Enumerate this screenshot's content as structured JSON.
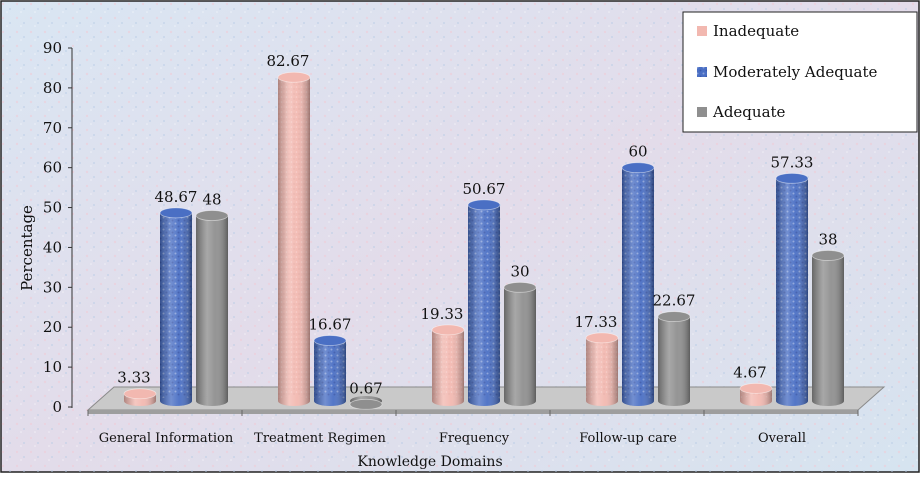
{
  "chart_data": {
    "type": "bar",
    "xlabel": "Knowledge Domains",
    "ylabel": "Percentage",
    "ylim": [
      0,
      90
    ],
    "yticks": [
      "0",
      "10",
      "20",
      "30",
      "40",
      "50",
      "60",
      "70",
      "80",
      "90"
    ],
    "categories": [
      "General Information",
      "Treatment Regimen",
      "Frequency",
      "Follow-up care",
      "Overall"
    ],
    "series": [
      {
        "name": "Inadequate",
        "color": "#f2b8b0",
        "values": [
          3.33,
          82.67,
          19.33,
          17.33,
          4.67
        ],
        "labels": [
          "3.33",
          "82.67",
          "19.33",
          "17.33",
          "4.67"
        ]
      },
      {
        "name": "Moderately Adequate",
        "color": "#4a6fc4",
        "values": [
          48.67,
          16.67,
          50.67,
          60,
          57.33
        ],
        "labels": [
          "48.67",
          "16.67",
          "50.67",
          "60",
          "57.33"
        ]
      },
      {
        "name": "Adequate",
        "color": "#8f8f8f",
        "values": [
          48,
          0.67,
          30,
          22.67,
          38
        ],
        "labels": [
          "48",
          "0.67",
          "30",
          "22.67",
          "38"
        ]
      }
    ],
    "legend_position": "top-right",
    "grid": false
  }
}
